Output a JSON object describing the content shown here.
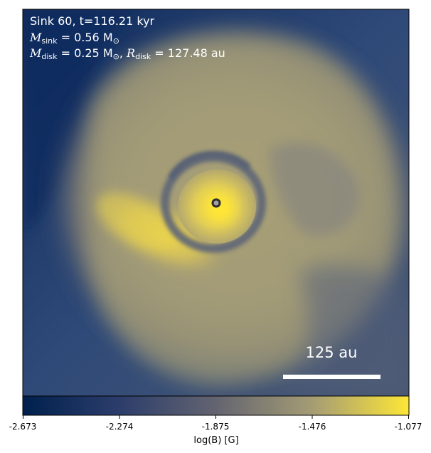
{
  "annotation": {
    "line1": "Sink 60, t=116.21 kyr",
    "line2_sym": "M",
    "line2_sub": "sink",
    "line2_value": " = 0.56 M",
    "line2_sun": "⊙",
    "line3_sym1": "M",
    "line3_sub1": "disk",
    "line3_value1": " = 0.25 M",
    "line3_sun": "⊙",
    "line3_sep": ", ",
    "line3_sym2": "R",
    "line3_sub2": "disk",
    "line3_value2": " = 127.48 au"
  },
  "scale_bar": {
    "label": "125 au"
  },
  "colorbar": {
    "label": "log(B) [G]",
    "ticks": [
      "-2.673",
      "-2.274",
      "-1.875",
      "-1.476",
      "-1.077"
    ],
    "colors": [
      "#00204d",
      "#2c3d6b",
      "#636470",
      "#a59c74",
      "#fde737"
    ]
  },
  "colors": {
    "background_blue": "#23427a",
    "field_olive": "#a9a178",
    "ring_gray": "#6b6d78",
    "hot_yellow": "#f7df45",
    "sink_marker": "#2d2d2d"
  }
}
